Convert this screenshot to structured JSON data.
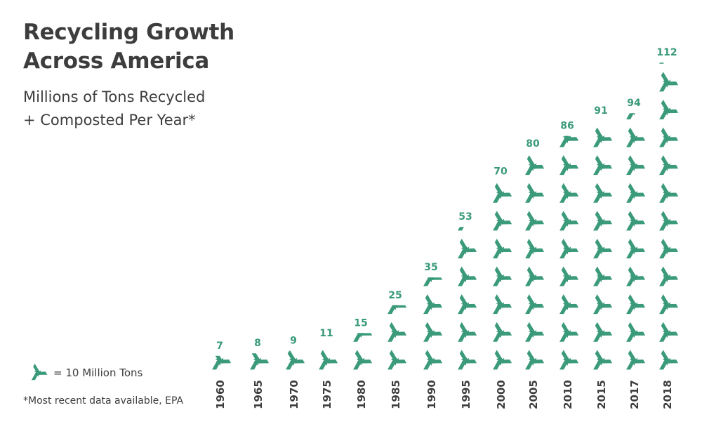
{
  "header": {
    "title_line1": "Recycling Growth",
    "title_line2": "Across America",
    "subtitle_line1": "Millions of Tons Recycled",
    "subtitle_line2": "+ Composted Per Year*"
  },
  "legend": {
    "icon": "recycle-icon",
    "text": "= 10 Million Tons",
    "unit_value": 10
  },
  "footnote": "*Most recent data available, EPA",
  "colors": {
    "accent": "#3a9a7a",
    "text": "#3d3d3d"
  },
  "chart_data": {
    "type": "bar",
    "style": "pictograph",
    "categories": [
      "1960",
      "1965",
      "1970",
      "1975",
      "1980",
      "1985",
      "1990",
      "1995",
      "2000",
      "2005",
      "2010",
      "2015",
      "2017",
      "2018"
    ],
    "values": [
      7,
      8,
      9,
      11,
      15,
      25,
      35,
      53,
      70,
      80,
      86,
      91,
      94,
      112
    ],
    "title": "Recycling Growth Across America",
    "subtitle": "Millions of Tons Recycled + Composted Per Year*",
    "xlabel": "",
    "ylabel": "",
    "grid": false,
    "legend_position": "bottom-left"
  }
}
